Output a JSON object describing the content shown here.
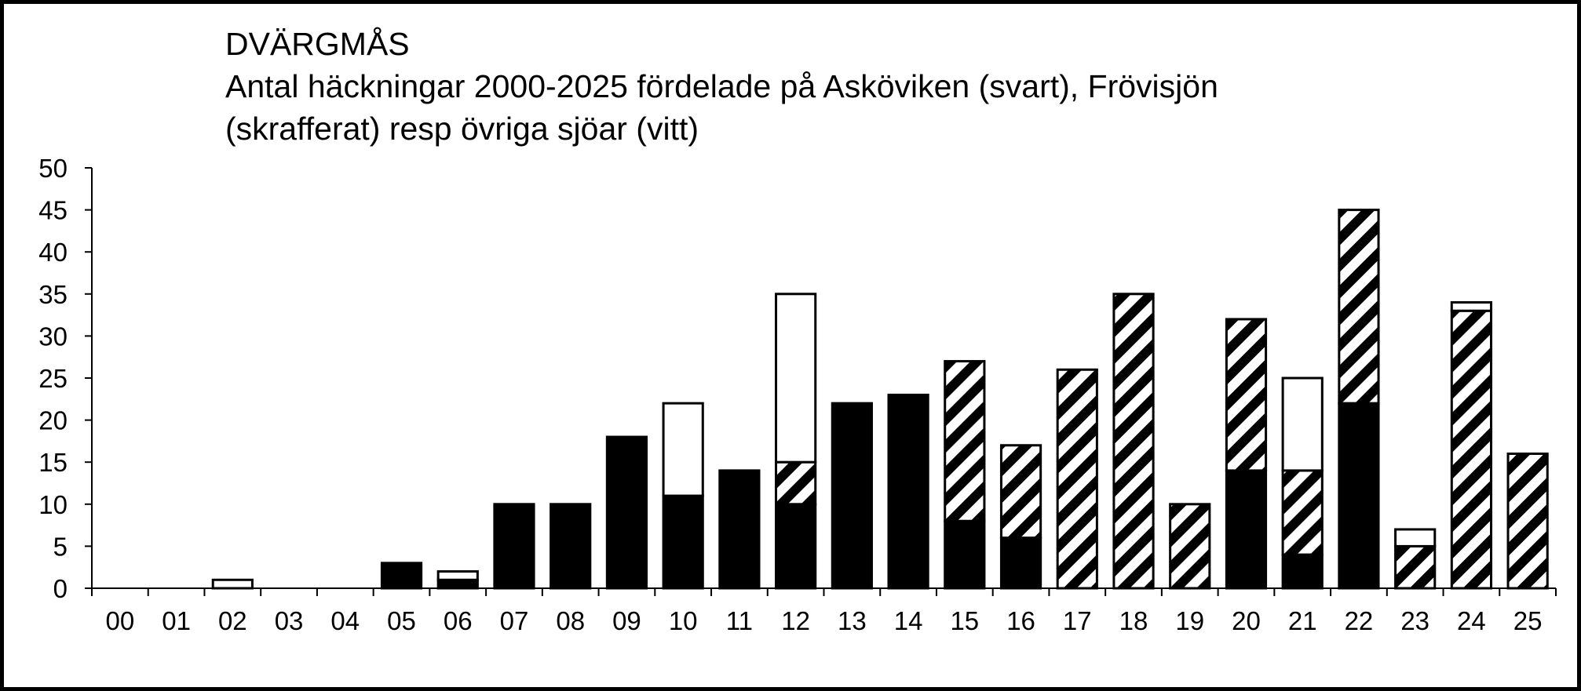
{
  "chart_data": {
    "type": "bar",
    "stacked": true,
    "title": "DVÄRGMÅS",
    "subtitle_lines": [
      "Antal häckningar 2000-2025 fördelade på Asköviken (svart), Frövisjön",
      "(skrafferat) resp övriga sjöar (vitt)"
    ],
    "categories": [
      "00",
      "01",
      "02",
      "03",
      "04",
      "05",
      "06",
      "07",
      "08",
      "09",
      "10",
      "11",
      "12",
      "13",
      "14",
      "15",
      "16",
      "17",
      "18",
      "19",
      "20",
      "21",
      "22",
      "23",
      "24",
      "25"
    ],
    "series": [
      {
        "name": "Asköviken (svart)",
        "fill": "solid",
        "color": "#000000",
        "values": [
          0,
          0,
          0,
          0,
          0,
          3,
          1,
          10,
          10,
          18,
          11,
          14,
          10,
          22,
          23,
          8,
          6,
          0,
          0,
          0,
          14,
          4,
          22,
          0,
          0,
          0
        ]
      },
      {
        "name": "Frövisjön (skrafferat)",
        "fill": "hatch",
        "color": "#000000",
        "values": [
          0,
          0,
          0,
          0,
          0,
          0,
          0,
          0,
          0,
          0,
          0,
          0,
          5,
          0,
          0,
          19,
          11,
          26,
          35,
          10,
          18,
          10,
          23,
          5,
          33,
          16
        ]
      },
      {
        "name": "övriga sjöar (vitt)",
        "fill": "white",
        "color": "#ffffff",
        "values": [
          0,
          0,
          1,
          0,
          0,
          0,
          1,
          0,
          0,
          0,
          11,
          0,
          20,
          0,
          0,
          0,
          0,
          0,
          0,
          0,
          0,
          11,
          0,
          2,
          1,
          0
        ]
      }
    ],
    "ylim": [
      0,
      50
    ],
    "yticks": [
      "0",
      "5",
      "10",
      "15",
      "20",
      "25",
      "30",
      "35",
      "40",
      "45",
      "50"
    ],
    "grid": false,
    "legend": "none"
  }
}
